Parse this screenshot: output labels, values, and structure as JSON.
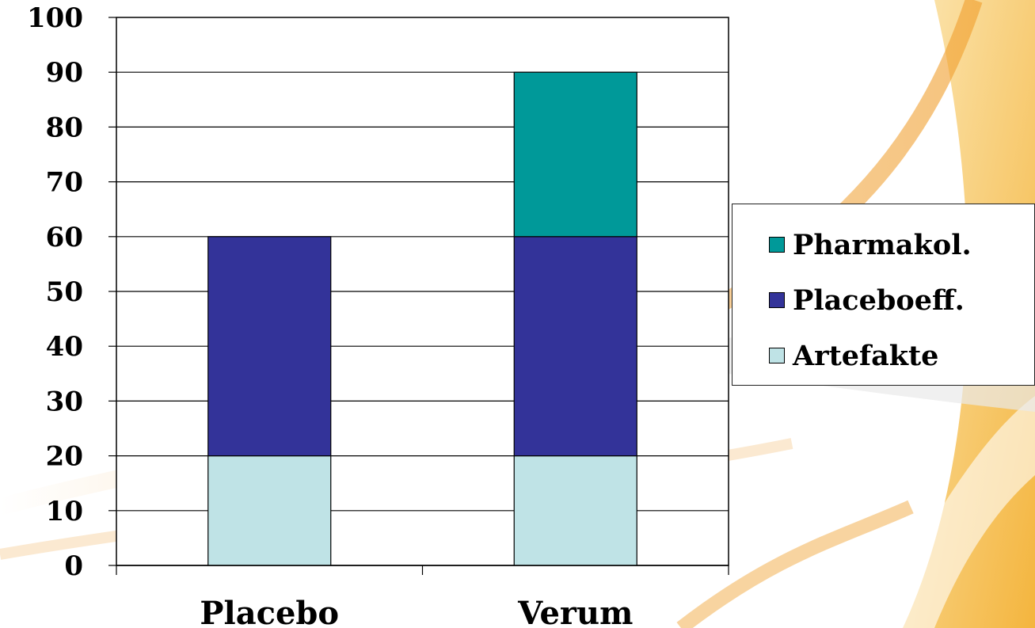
{
  "chart_data": {
    "type": "bar",
    "stacked": true,
    "categories": [
      "Placebo",
      "Verum"
    ],
    "series": [
      {
        "name": "Artefakte",
        "values": [
          20,
          20
        ],
        "color": "#bfe3e6"
      },
      {
        "name": "Placeboeff.",
        "values": [
          40,
          40
        ],
        "color": "#333399"
      },
      {
        "name": "Pharmakol.",
        "values": [
          0,
          30
        ],
        "color": "#009999"
      }
    ],
    "ylim": [
      0,
      100
    ],
    "yticks": [
      "0",
      "10",
      "20",
      "30",
      "40",
      "50",
      "60",
      "70",
      "80",
      "90",
      "100"
    ],
    "grid": true,
    "legend_position": "right"
  },
  "legend": {
    "items": [
      {
        "label": "Pharmakol.",
        "color": "#009999"
      },
      {
        "label": "Placeboeff.",
        "color": "#333399"
      },
      {
        "label": "Artefakte",
        "color": "#bfe3e6"
      }
    ]
  }
}
